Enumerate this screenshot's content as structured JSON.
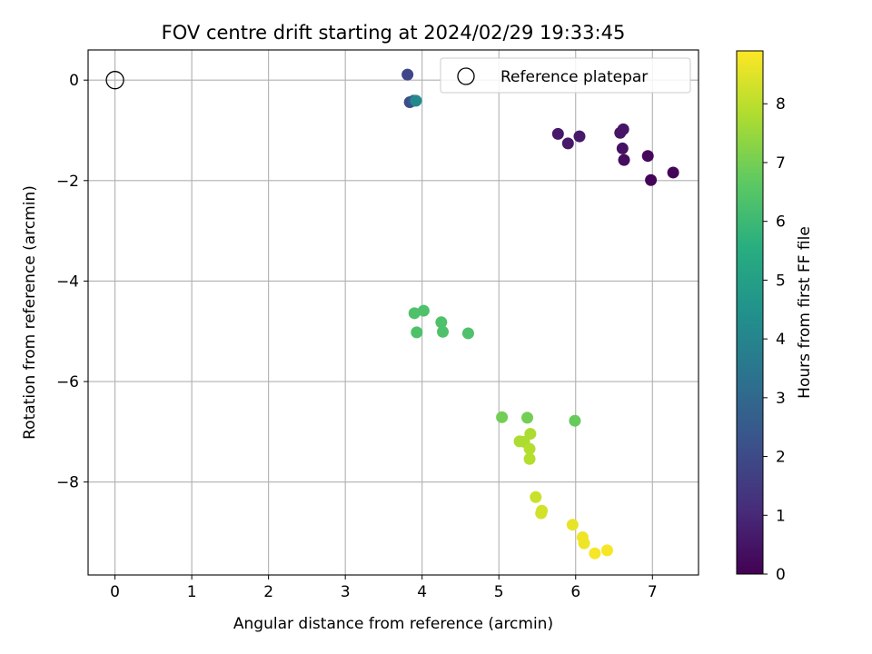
{
  "chart_data": {
    "type": "scatter",
    "title": "FOV centre drift starting at 2024/02/29 19:33:45",
    "xlabel": "Angular distance from reference (arcmin)",
    "ylabel": "Rotation from reference (arcmin)",
    "xlim": [
      -0.35,
      7.6
    ],
    "ylim": [
      -9.85,
      0.6
    ],
    "xticks": [
      0,
      1,
      2,
      3,
      4,
      5,
      6,
      7
    ],
    "yticks": [
      0,
      -2,
      -4,
      -6,
      -8
    ],
    "grid": true,
    "legend": {
      "position": "top-right",
      "entries": [
        "Reference platepar"
      ]
    },
    "reference_point": {
      "x": 0,
      "y": 0
    },
    "colorbar": {
      "label": "Hours from first FF file",
      "range": [
        0,
        8.9
      ],
      "ticks": [
        0,
        1,
        2,
        3,
        4,
        5,
        6,
        7,
        8
      ],
      "colormap": "viridis"
    },
    "points": [
      {
        "x": 3.81,
        "y": 0.11,
        "hours": 1.9
      },
      {
        "x": 3.84,
        "y": -0.44,
        "hours": 2.1
      },
      {
        "x": 3.89,
        "y": -0.41,
        "hours": 2.4
      },
      {
        "x": 3.92,
        "y": -0.41,
        "hours": 4.2
      },
      {
        "x": 5.77,
        "y": -1.07,
        "hours": 0.6
      },
      {
        "x": 5.9,
        "y": -1.26,
        "hours": 0.6
      },
      {
        "x": 6.05,
        "y": -1.12,
        "hours": 0.6
      },
      {
        "x": 6.58,
        "y": -1.05,
        "hours": 0.5
      },
      {
        "x": 6.62,
        "y": -0.98,
        "hours": 0.5
      },
      {
        "x": 6.61,
        "y": -1.36,
        "hours": 0.4
      },
      {
        "x": 6.63,
        "y": -1.59,
        "hours": 0.3
      },
      {
        "x": 6.94,
        "y": -1.51,
        "hours": 0.2
      },
      {
        "x": 6.98,
        "y": -1.99,
        "hours": 0.1
      },
      {
        "x": 7.27,
        "y": -1.84,
        "hours": 0.1
      },
      {
        "x": 3.9,
        "y": -4.64,
        "hours": 6.4
      },
      {
        "x": 4.02,
        "y": -4.59,
        "hours": 6.4
      },
      {
        "x": 3.93,
        "y": -5.02,
        "hours": 6.4
      },
      {
        "x": 4.25,
        "y": -4.82,
        "hours": 6.4
      },
      {
        "x": 4.27,
        "y": -5.01,
        "hours": 6.4
      },
      {
        "x": 4.6,
        "y": -5.04,
        "hours": 6.4
      },
      {
        "x": 5.04,
        "y": -6.71,
        "hours": 7.0
      },
      {
        "x": 5.37,
        "y": -6.72,
        "hours": 7.0
      },
      {
        "x": 5.99,
        "y": -6.78,
        "hours": 6.8
      },
      {
        "x": 5.41,
        "y": -7.04,
        "hours": 7.8
      },
      {
        "x": 5.27,
        "y": -7.19,
        "hours": 7.8
      },
      {
        "x": 5.33,
        "y": -7.2,
        "hours": 7.8
      },
      {
        "x": 5.4,
        "y": -7.34,
        "hours": 7.9
      },
      {
        "x": 5.4,
        "y": -7.54,
        "hours": 7.9
      },
      {
        "x": 5.48,
        "y": -8.3,
        "hours": 8.2
      },
      {
        "x": 5.56,
        "y": -8.57,
        "hours": 8.3
      },
      {
        "x": 5.55,
        "y": -8.62,
        "hours": 8.3
      },
      {
        "x": 5.96,
        "y": -8.85,
        "hours": 8.6
      },
      {
        "x": 6.09,
        "y": -9.1,
        "hours": 8.7
      },
      {
        "x": 6.11,
        "y": -9.22,
        "hours": 8.7
      },
      {
        "x": 6.25,
        "y": -9.42,
        "hours": 8.8
      },
      {
        "x": 6.41,
        "y": -9.36,
        "hours": 8.8
      }
    ]
  }
}
